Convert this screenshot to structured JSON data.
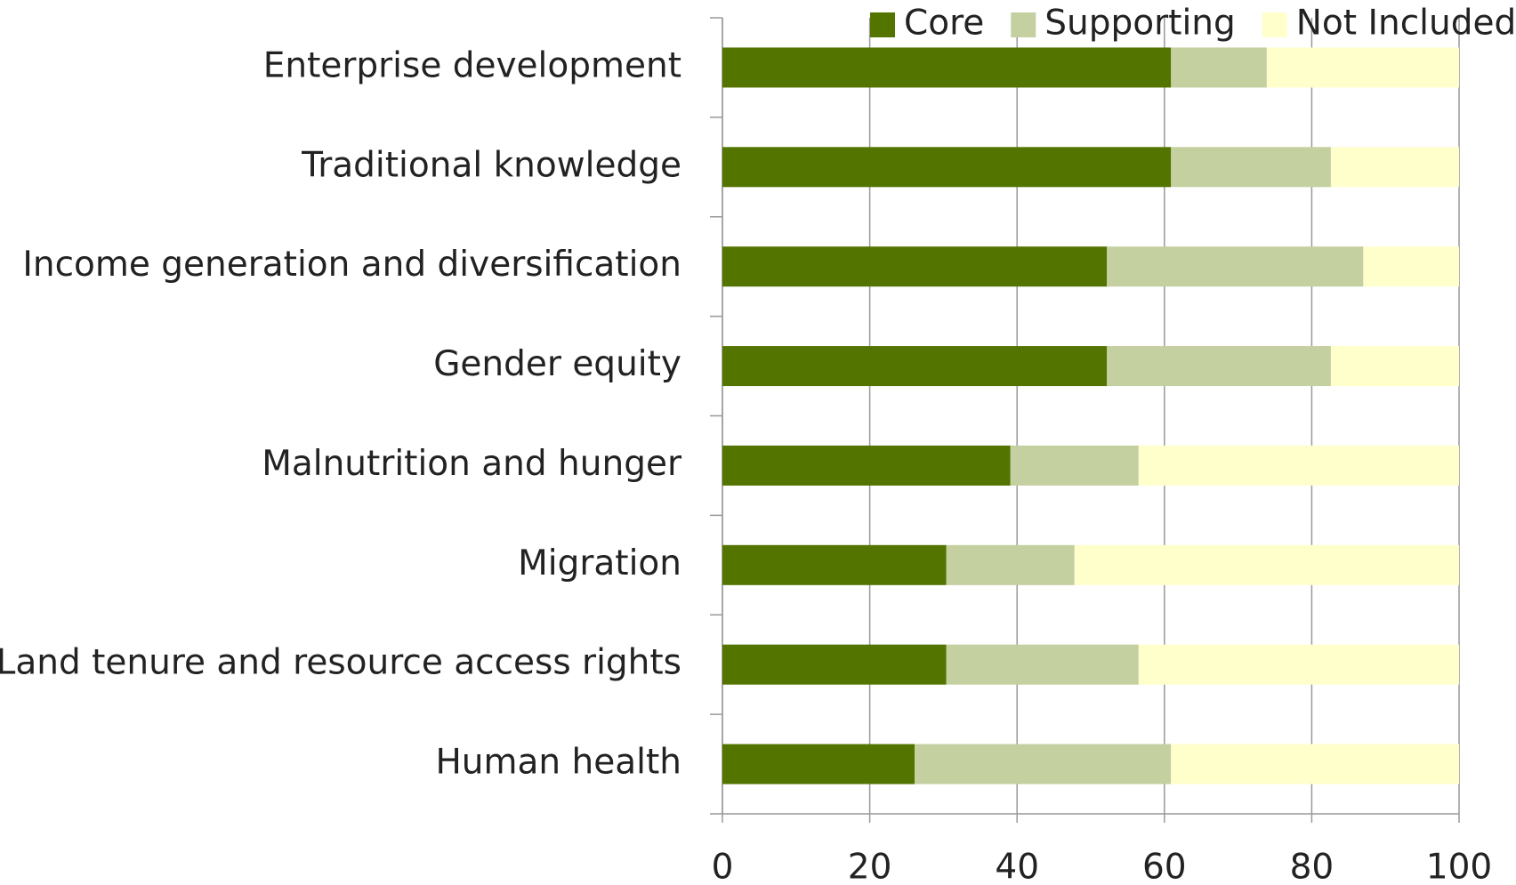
{
  "chart_data": {
    "type": "stacked-bar-horizontal",
    "categories": [
      "Enterprise development",
      "Traditional knowledge",
      "Income generation and diversification",
      "Gender equity",
      "Malnutrition and hunger",
      "Migration",
      "Land tenure and resource access rights",
      "Human health"
    ],
    "series": [
      {
        "name": "Core",
        "color": "#547400",
        "values": [
          60.9,
          60.9,
          52.2,
          52.2,
          39.1,
          30.4,
          30.4,
          26.1
        ]
      },
      {
        "name": "Supporting",
        "color": "#c4d0a0",
        "values": [
          13.0,
          21.7,
          34.8,
          30.4,
          17.4,
          17.4,
          26.1,
          34.8
        ]
      },
      {
        "name": "Not Included",
        "color": "#ffffcc",
        "values": [
          26.1,
          17.4,
          13.0,
          17.4,
          43.5,
          52.2,
          43.5,
          39.1
        ]
      }
    ],
    "xlim": [
      0,
      100
    ],
    "xticks": [
      0,
      20,
      40,
      60,
      80,
      100
    ],
    "grid": true,
    "legend": "top"
  }
}
